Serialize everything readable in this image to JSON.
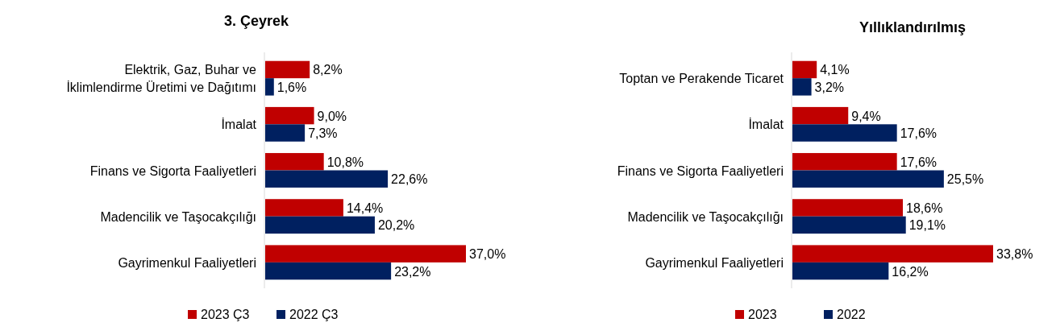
{
  "chart_data": [
    {
      "type": "bar",
      "title": "3. Çeyrek",
      "orientation": "horizontal",
      "categories": [
        "Elektrik, Gaz, Buhar ve İklimlendirme Üretimi ve Dağıtımı",
        "İmalat",
        "Finans ve Sigorta Faaliyetleri",
        "Madencilik ve Taşocakçılığı",
        "Gayrimenkul Faaliyetleri"
      ],
      "legend": "bottom",
      "series": [
        {
          "name": "2023 Ç3",
          "color": "#c00000",
          "values": [
            8.2,
            9.0,
            10.8,
            14.4,
            37.0
          ],
          "value_labels": [
            "8,2%",
            "9,0%",
            "10,8%",
            "14,4%",
            "37,0%"
          ]
        },
        {
          "name": "2022 Ç3",
          "color": "#002060",
          "values": [
            1.6,
            7.3,
            22.6,
            20.2,
            23.2
          ],
          "value_labels": [
            "1,6%",
            "7,3%",
            "22,6%",
            "20,2%",
            "23,2%"
          ]
        }
      ]
    },
    {
      "type": "bar",
      "title": "Yıllıklandırılmış",
      "orientation": "horizontal",
      "categories": [
        "Toptan ve Perakende Ticaret",
        "İmalat",
        "Finans ve Sigorta Faaliyetleri",
        "Madencilik ve Taşocakçılığı",
        "Gayrimenkul Faaliyetleri"
      ],
      "legend": "bottom",
      "series": [
        {
          "name": "2023",
          "color": "#c00000",
          "values": [
            4.1,
            9.4,
            17.6,
            18.6,
            33.8
          ],
          "value_labels": [
            "4,1%",
            "9,4%",
            "17,6%",
            "18,6%",
            "33,8%"
          ]
        },
        {
          "name": "2022",
          "color": "#002060",
          "values": [
            3.2,
            17.6,
            25.5,
            19.1,
            16.2
          ],
          "value_labels": [
            "3,2%",
            "17,6%",
            "25,5%",
            "19,1%",
            "16,2%"
          ]
        }
      ]
    }
  ]
}
